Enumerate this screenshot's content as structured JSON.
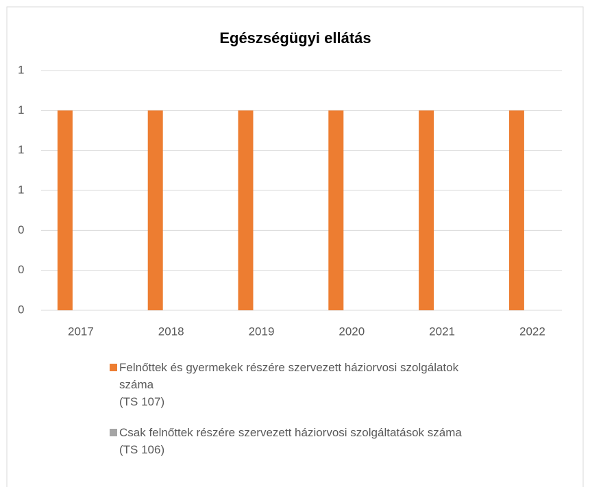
{
  "chart_data": {
    "type": "bar",
    "title": "Egészségügyi ellátás",
    "categories": [
      "2017",
      "2018",
      "2019",
      "2020",
      "2021",
      "2022"
    ],
    "series": [
      {
        "name": "Felnőttek és gyermekek részére szervezett háziorvosi szolgálatok száma\n(TS 107)",
        "color": "#ed7d31",
        "values": [
          1,
          1,
          1,
          1,
          1,
          1
        ]
      },
      {
        "name": "Csak felnőttek részére szervezett háziorvosi szolgáltatások száma\n(TS 106)",
        "color": "#a5a5a5",
        "values": [
          0,
          0,
          0,
          0,
          0,
          0
        ]
      }
    ],
    "ylim": [
      0,
      1.2
    ],
    "yticks": [
      0,
      {
        "value": 0.2,
        "label": "0"
      },
      {
        "value": 0.4,
        "label": "0"
      },
      {
        "value": 0.6,
        "label": "1"
      },
      {
        "value": 0.8,
        "label": "1"
      },
      1,
      {
        "value": 1.2,
        "label": "1"
      }
    ],
    "grid": true,
    "legend": "bottom"
  }
}
